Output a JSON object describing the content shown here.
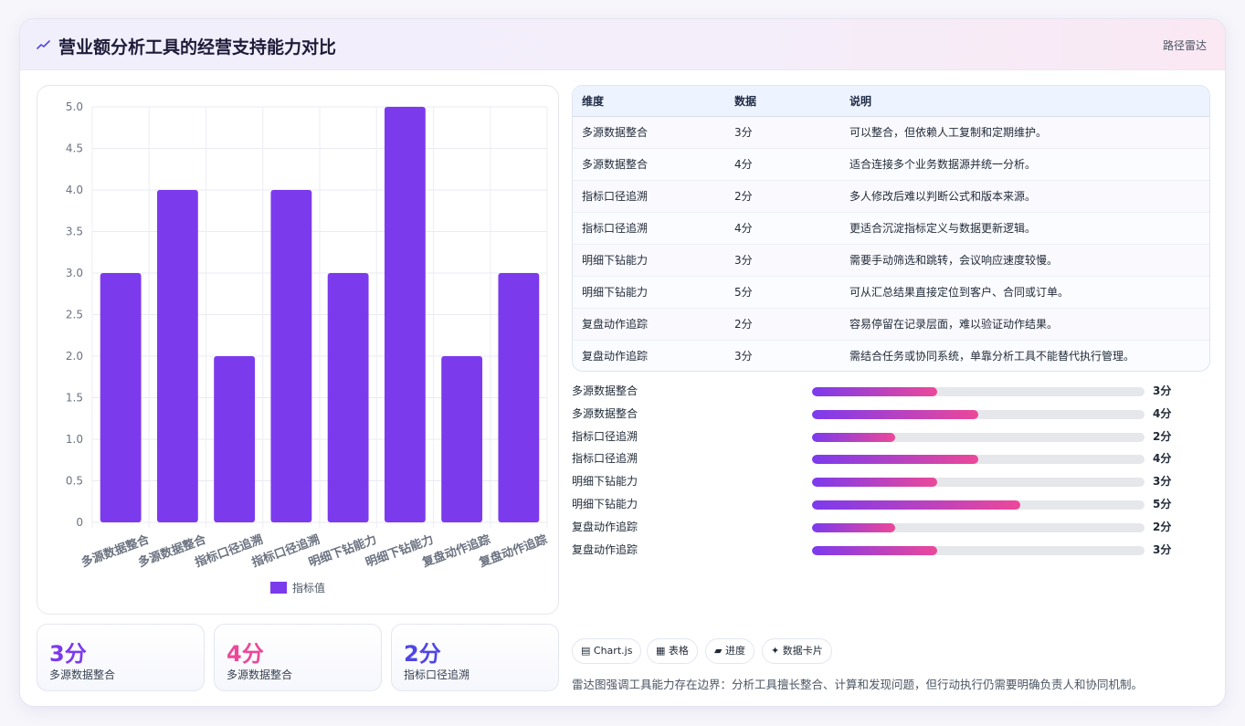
{
  "header": {
    "title": "营业额分析工具的经营支持能力对比",
    "tag": "路径雷达",
    "logo_icon": "sparkline-icon"
  },
  "chart_data": {
    "type": "bar",
    "categories": [
      "多源数据整合",
      "多源数据整合",
      "指标口径追溯",
      "指标口径追溯",
      "明细下钻能力",
      "明细下钻能力",
      "复盘动作追踪",
      "复盘动作追踪"
    ],
    "series": [
      {
        "name": "指标值",
        "values": [
          3,
          4,
          2,
          4,
          3,
          5,
          2,
          3
        ]
      }
    ],
    "ylim": [
      0,
      5
    ],
    "yticks": [
      "0",
      "0.5",
      "1.0",
      "1.5",
      "2.0",
      "2.5",
      "3.0",
      "3.5",
      "4.0",
      "4.5",
      "5.0"
    ],
    "legend_position": "bottom",
    "color": "#7c3aed",
    "grid": true
  },
  "kpis": [
    {
      "value": "3分",
      "label": "多源数据整合",
      "color": "#7c3aed"
    },
    {
      "value": "4分",
      "label": "多源数据整合",
      "color": "#ec4899"
    },
    {
      "value": "2分",
      "label": "指标口径追溯",
      "color": "#4f46e5"
    }
  ],
  "table": {
    "headers": [
      "维度",
      "数据",
      "说明"
    ],
    "rows": [
      [
        "多源数据整合",
        "3分",
        "可以整合，但依赖人工复制和定期维护。"
      ],
      [
        "多源数据整合",
        "4分",
        "适合连接多个业务数据源并统一分析。"
      ],
      [
        "指标口径追溯",
        "2分",
        "多人修改后难以判断公式和版本来源。"
      ],
      [
        "指标口径追溯",
        "4分",
        "更适合沉淀指标定义与数据更新逻辑。"
      ],
      [
        "明细下钻能力",
        "3分",
        "需要手动筛选和跳转，会议响应速度较慢。"
      ],
      [
        "明细下钻能力",
        "5分",
        "可从汇总结果直接定位到客户、合同或订单。"
      ],
      [
        "复盘动作追踪",
        "2分",
        "容易停留在记录层面，难以验证动作结果。"
      ],
      [
        "复盘动作追踪",
        "3分",
        "需结合任务或协同系统，单靠分析工具不能替代执行管理。"
      ]
    ]
  },
  "progress": [
    {
      "label": "多源数据整合",
      "value": 3,
      "text": "3分"
    },
    {
      "label": "多源数据整合",
      "value": 4,
      "text": "4分"
    },
    {
      "label": "指标口径追溯",
      "value": 2,
      "text": "2分"
    },
    {
      "label": "指标口径追溯",
      "value": 4,
      "text": "4分"
    },
    {
      "label": "明细下钻能力",
      "value": 3,
      "text": "3分"
    },
    {
      "label": "明细下钻能力",
      "value": 5,
      "text": "5分"
    },
    {
      "label": "复盘动作追踪",
      "value": 2,
      "text": "2分"
    },
    {
      "label": "复盘动作追踪",
      "value": 3,
      "text": "3分"
    }
  ],
  "progress_max": 8,
  "chips": [
    {
      "icon": "▤",
      "label": "Chart.js"
    },
    {
      "icon": "▦",
      "label": "表格"
    },
    {
      "icon": "▰",
      "label": "进度"
    },
    {
      "icon": "✦",
      "label": "数据卡片"
    }
  ],
  "footer": "雷达图强调工具能力存在边界：分析工具擅长整合、计算和发现问题，但行动执行仍需要明确负责人和协同机制。"
}
